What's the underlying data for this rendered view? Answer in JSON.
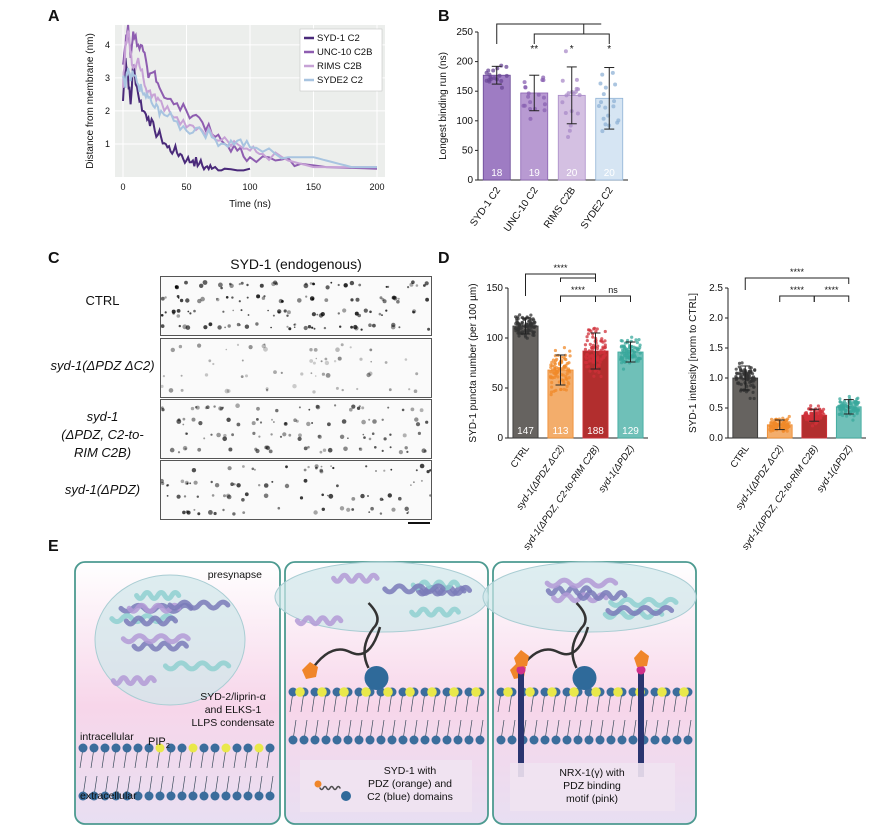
{
  "panel_labels": {
    "a": "A",
    "b": "B",
    "c": "C",
    "d": "D",
    "e": "E"
  },
  "panel_a": {
    "chart_data": {
      "type": "line",
      "xlabel": "Time (ns)",
      "ylabel": "Distance from membrane (nm)",
      "xlim": [
        0,
        200
      ],
      "ylim": [
        0,
        4.6
      ],
      "xticks": [
        0,
        50,
        100,
        150,
        200
      ],
      "yticks": [
        1,
        2,
        3,
        4
      ],
      "legend_position": "top-right",
      "series": [
        {
          "name": "SYD-1 C2",
          "color": "#4a2a7a",
          "x": [
            0,
            2,
            4,
            6,
            8,
            12,
            16,
            20,
            25,
            30,
            35,
            40,
            45,
            50,
            55,
            60,
            65,
            70,
            80,
            100
          ],
          "y": [
            2.3,
            3.6,
            3.0,
            2.2,
            3.4,
            2.5,
            2.0,
            1.8,
            1.4,
            1.2,
            0.9,
            0.8,
            0.7,
            0.5,
            0.5,
            0.4,
            0.3,
            0.25,
            0.25,
            0.25
          ]
        },
        {
          "name": "UNC-10 C2B",
          "color": "#8e5db0",
          "x": [
            0,
            2,
            4,
            6,
            8,
            12,
            16,
            20,
            25,
            30,
            40,
            50,
            60,
            70,
            80,
            90,
            100,
            120,
            140,
            160,
            200
          ],
          "y": [
            3.4,
            4.0,
            4.6,
            3.6,
            4.4,
            4.0,
            3.8,
            3.0,
            3.2,
            2.6,
            2.2,
            2.0,
            1.8,
            1.3,
            1.0,
            0.8,
            0.6,
            0.5,
            0.4,
            0.3,
            0.25
          ]
        },
        {
          "name": "RIMS C2B",
          "color": "#c7a2d6",
          "x": [
            0,
            2,
            4,
            6,
            8,
            12,
            16,
            20,
            25,
            30,
            40,
            50,
            60,
            70,
            80,
            90,
            100,
            110,
            130,
            150,
            170,
            200
          ],
          "y": [
            2.7,
            4.1,
            4.4,
            3.8,
            3.3,
            3.6,
            3.0,
            2.6,
            2.5,
            2.3,
            1.8,
            1.5,
            1.5,
            1.3,
            1.2,
            1.0,
            0.8,
            0.7,
            0.5,
            0.3,
            0.3,
            0.3
          ]
        },
        {
          "name": "SYDE2 C2",
          "color": "#a8c4e0",
          "x": [
            0,
            2,
            4,
            6,
            8,
            12,
            16,
            20,
            25,
            30,
            40,
            50,
            60,
            70,
            80,
            90,
            100,
            120,
            140,
            150,
            160,
            180,
            200
          ],
          "y": [
            3.0,
            2.7,
            3.3,
            2.9,
            3.1,
            2.8,
            2.5,
            2.4,
            2.1,
            2.0,
            1.7,
            1.4,
            1.5,
            1.2,
            1.0,
            1.1,
            0.9,
            0.7,
            0.6,
            0.6,
            0.5,
            0.3,
            0.3
          ]
        }
      ]
    }
  },
  "panel_b": {
    "chart_data": {
      "type": "bar",
      "ylabel": "Longest binding run (ns)",
      "ylim": [
        0,
        250
      ],
      "yticks": [
        0,
        50,
        100,
        150,
        200,
        250
      ],
      "categories": [
        "SYD-1 C2",
        "UNC-10 C2",
        "RIMS C2B",
        "SYDE2 C2"
      ],
      "values": [
        177,
        147,
        143,
        138
      ],
      "sd": [
        15,
        30,
        48,
        52
      ],
      "n": [
        "18",
        "19",
        "20",
        "20"
      ],
      "colors": [
        "#9e7cc3",
        "#b89ad2",
        "#d4c0e2",
        "#d6e5f3"
      ],
      "dot_colors": [
        "#6a4796",
        "#8a62b2",
        "#a98bc8",
        "#8fb2d6"
      ],
      "significance": [
        "",
        "**",
        "*",
        "*"
      ]
    }
  },
  "panel_c": {
    "title": "SYD-1 (endogenous)",
    "rows": [
      {
        "label": "CTRL",
        "italic": false
      },
      {
        "label": "syd-1(ΔPDZ ΔC2)",
        "italic": true
      },
      {
        "label_line1": "syd-1",
        "label_line2": "(ΔPDZ, C2-to-RIM C2B)",
        "italic": true
      },
      {
        "label": "syd-1(ΔPDZ)",
        "italic": true
      }
    ]
  },
  "panel_d1": {
    "chart_data": {
      "type": "bar",
      "ylabel": "SYD-1 puncta number (per 100 µm)",
      "ylim": [
        0,
        150
      ],
      "yticks": [
        0,
        50,
        100,
        150
      ],
      "categories": [
        "CTRL",
        "syd-1(ΔPDZ ΔC2)",
        "syd-1(ΔPDZ, C2-to-RIM C2B)",
        "syd-1(ΔPDZ)"
      ],
      "values": [
        112,
        68,
        87,
        86
      ],
      "sd": [
        8,
        15,
        18,
        10
      ],
      "n": [
        "147",
        "113",
        "188",
        "129"
      ],
      "colors": [
        "#666360",
        "#f3ad6b",
        "#b22e2e",
        "#6fc0b8"
      ],
      "dot_colors": [
        "#333",
        "#f08a2a",
        "#d0303a",
        "#3aa89c"
      ],
      "significance": [
        {
          "from": 0,
          "to": [
            1,
            2
          ],
          "label": "****"
        },
        {
          "from": 1,
          "to": 2,
          "label": "****"
        },
        {
          "from": 2,
          "to": 3,
          "label": "ns"
        }
      ]
    }
  },
  "panel_d2": {
    "chart_data": {
      "type": "bar",
      "ylabel": "SYD-1 intensity [norm to CTRL]",
      "ylim": [
        0,
        2.5
      ],
      "yticks": [
        0.0,
        0.5,
        1.0,
        1.5,
        2.0,
        2.5
      ],
      "categories": [
        "CTRL",
        "syd-1(ΔPDZ ΔC2)",
        "syd-1(ΔPDZ, C2-to-RIM C2B)",
        "syd-1(ΔPDZ)"
      ],
      "values": [
        1.0,
        0.22,
        0.38,
        0.52
      ],
      "sd": [
        0.2,
        0.08,
        0.1,
        0.12
      ],
      "colors": [
        "#666360",
        "#f3ad6b",
        "#b22e2e",
        "#6fc0b8"
      ],
      "dot_colors": [
        "#333",
        "#f08a2a",
        "#d0303a",
        "#3aa89c"
      ],
      "significance": [
        {
          "label": "****"
        },
        {
          "label": "****"
        },
        {
          "label": "****"
        }
      ]
    }
  },
  "panel_e": {
    "presynapse": "presynapse",
    "pip2": "PIP2",
    "pip2_main": "PIP",
    "pip2_sub": "2",
    "condensate": "SYD-2/liprin-α\nand ELKS-1\nLLPS condensate",
    "intracellular": "intracellular",
    "extracellular": "extracellular",
    "syd1_box": "SYD-1 with\nPDZ (orange) and\nC2 (blue) domains",
    "nrx_box": "NRX-1(γ) with\nPDZ binding\nmotif (pink)"
  }
}
